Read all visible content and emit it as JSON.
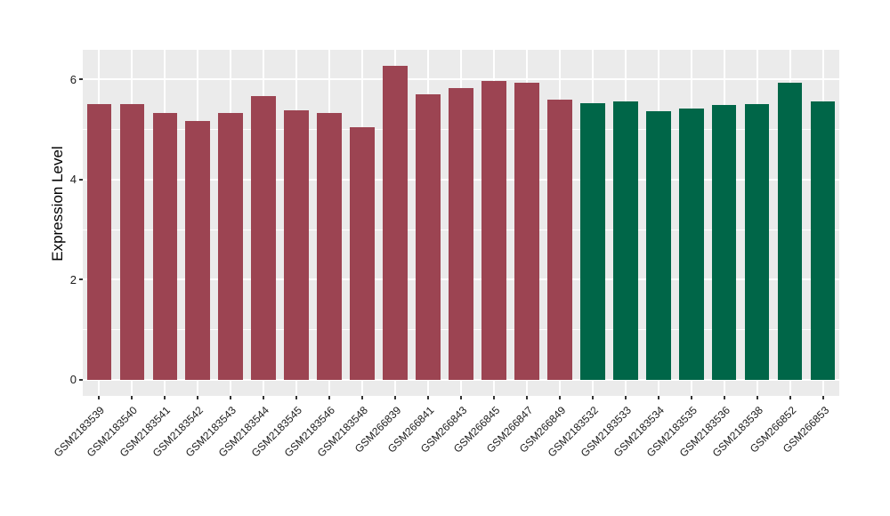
{
  "chart_data": {
    "type": "bar",
    "title": "",
    "xlabel": "",
    "ylabel": "Expression Level",
    "y_major_ticks": [
      0,
      2,
      4,
      6
    ],
    "y_minor_ticks": [
      1,
      3,
      5
    ],
    "ylim": [
      -0.32,
      6.59
    ],
    "bar_width_fraction": 0.75,
    "grid": "major-and-minor-white",
    "legend_position": "none",
    "group_colors": {
      "group_a": "#9C4452",
      "group_b": "#006648"
    },
    "bars": [
      {
        "label": "GSM2183539",
        "value": 5.5,
        "group": "group_a"
      },
      {
        "label": "GSM2183540",
        "value": 5.5,
        "group": "group_a"
      },
      {
        "label": "GSM2183541",
        "value": 5.33,
        "group": "group_a"
      },
      {
        "label": "GSM2183542",
        "value": 5.17,
        "group": "group_a"
      },
      {
        "label": "GSM2183543",
        "value": 5.33,
        "group": "group_a"
      },
      {
        "label": "GSM2183544",
        "value": 5.67,
        "group": "group_a"
      },
      {
        "label": "GSM2183545",
        "value": 5.39,
        "group": "group_a"
      },
      {
        "label": "GSM2183546",
        "value": 5.32,
        "group": "group_a"
      },
      {
        "label": "GSM2183548",
        "value": 5.05,
        "group": "group_a"
      },
      {
        "label": "GSM266839",
        "value": 6.27,
        "group": "group_a"
      },
      {
        "label": "GSM266841",
        "value": 5.7,
        "group": "group_a"
      },
      {
        "label": "GSM266843",
        "value": 5.83,
        "group": "group_a"
      },
      {
        "label": "GSM266845",
        "value": 5.96,
        "group": "group_a"
      },
      {
        "label": "GSM266847",
        "value": 5.94,
        "group": "group_a"
      },
      {
        "label": "GSM266849",
        "value": 5.6,
        "group": "group_a"
      },
      {
        "label": "GSM2183532",
        "value": 5.52,
        "group": "group_b"
      },
      {
        "label": "GSM2183533",
        "value": 5.56,
        "group": "group_b"
      },
      {
        "label": "GSM2183534",
        "value": 5.37,
        "group": "group_b"
      },
      {
        "label": "GSM2183535",
        "value": 5.41,
        "group": "group_b"
      },
      {
        "label": "GSM2183536",
        "value": 5.49,
        "group": "group_b"
      },
      {
        "label": "GSM2183538",
        "value": 5.51,
        "group": "group_b"
      },
      {
        "label": "GSM266852",
        "value": 5.93,
        "group": "group_b"
      },
      {
        "label": "GSM266853",
        "value": 5.56,
        "group": "group_b"
      }
    ],
    "colors": {
      "figure_background": "#FFFFFF",
      "panel_background": "#EBEBEB",
      "grid": "#FFFFFF",
      "tick_marks": "#333333",
      "axis_text": "#1A1A1A",
      "axis_title": "#000000"
    }
  }
}
